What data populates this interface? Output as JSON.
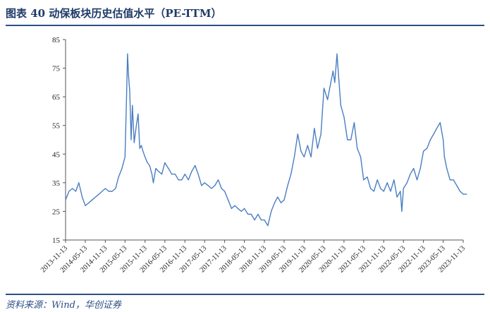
{
  "figure": {
    "title": "图表 40   动保板块历史估值水平（PE-TTM）",
    "source": "资料来源：Wind，华创证券"
  },
  "colors": {
    "line": "#4a7ec1",
    "axis": "#555555",
    "title": "#1f3b68"
  },
  "chart_data": {
    "type": "line",
    "title": "",
    "xlabel": "",
    "ylabel": "",
    "ylim": [
      15,
      85
    ],
    "yticks": [
      15,
      25,
      35,
      45,
      55,
      65,
      75,
      85
    ],
    "grid": false,
    "legend": "none",
    "xticks": [
      "2013-11-13",
      "2014-05-13",
      "2014-11-13",
      "2015-05-13",
      "2015-11-13",
      "2016-05-13",
      "2016-11-13",
      "2017-05-13",
      "2017-11-13",
      "2018-05-13",
      "2018-11-13",
      "2019-05-13",
      "2019-11-13",
      "2020-05-13",
      "2020-11-13",
      "2021-05-13",
      "2021-11-13",
      "2022-05-13",
      "2022-11-13",
      "2023-05-13",
      "2023-11-13"
    ],
    "series": [
      {
        "x": [
          "2013-11-13",
          "2013-12-15",
          "2014-01-15",
          "2014-02-15",
          "2014-03-15",
          "2014-04-15",
          "2014-05-13",
          "2014-06-15",
          "2014-07-15",
          "2014-08-15",
          "2014-09-15",
          "2014-10-15",
          "2014-11-13",
          "2014-12-15",
          "2015-01-15",
          "2015-02-15",
          "2015-03-15",
          "2015-04-15",
          "2015-05-13",
          "2015-05-25",
          "2015-06-05",
          "2015-06-15",
          "2015-06-25",
          "2015-07-08",
          "2015-07-20",
          "2015-08-05",
          "2015-08-25",
          "2015-09-10",
          "2015-09-25",
          "2015-10-10",
          "2015-10-25",
          "2015-11-13",
          "2015-12-05",
          "2015-12-25",
          "2016-01-15",
          "2016-01-28",
          "2016-02-20",
          "2016-03-15",
          "2016-04-15",
          "2016-05-13",
          "2016-06-15",
          "2016-07-15",
          "2016-08-15",
          "2016-09-15",
          "2016-10-15",
          "2016-11-13",
          "2016-12-15",
          "2017-01-15",
          "2017-02-15",
          "2017-03-15",
          "2017-04-15",
          "2017-05-13",
          "2017-06-15",
          "2017-07-15",
          "2017-08-15",
          "2017-09-15",
          "2017-10-15",
          "2017-11-13",
          "2017-12-15",
          "2018-01-15",
          "2018-02-15",
          "2018-03-15",
          "2018-04-15",
          "2018-05-13",
          "2018-06-15",
          "2018-07-15",
          "2018-08-15",
          "2018-09-15",
          "2018-10-15",
          "2018-11-13",
          "2018-12-15",
          "2019-01-15",
          "2019-02-15",
          "2019-03-15",
          "2019-04-15",
          "2019-05-13",
          "2019-06-15",
          "2019-07-15",
          "2019-08-15",
          "2019-09-15",
          "2019-10-15",
          "2019-11-13",
          "2019-12-15",
          "2020-01-15",
          "2020-02-15",
          "2020-03-15",
          "2020-04-15",
          "2020-05-13",
          "2020-06-15",
          "2020-07-15",
          "2020-08-05",
          "2020-08-20",
          "2020-09-10",
          "2020-09-25",
          "2020-10-15",
          "2020-11-13",
          "2020-12-15",
          "2021-01-15",
          "2021-02-15",
          "2021-03-15",
          "2021-04-15",
          "2021-05-13",
          "2021-06-15",
          "2021-07-15",
          "2021-08-15",
          "2021-09-15",
          "2021-10-15",
          "2021-11-13",
          "2021-12-15",
          "2022-01-15",
          "2022-02-15",
          "2022-03-15",
          "2022-04-15",
          "2022-04-28",
          "2022-05-13",
          "2022-06-15",
          "2022-07-15",
          "2022-08-15",
          "2022-09-15",
          "2022-10-15",
          "2022-11-13",
          "2022-12-15",
          "2023-01-15",
          "2023-02-15",
          "2023-03-15",
          "2023-04-15",
          "2023-05-13",
          "2023-05-25",
          "2023-06-15",
          "2023-07-15",
          "2023-08-15",
          "2023-09-15",
          "2023-10-15",
          "2023-11-13",
          "2023-12-15"
        ],
        "values": [
          29,
          32,
          33,
          32,
          35,
          30,
          27,
          28,
          29,
          30,
          31,
          32,
          33,
          32,
          32,
          33,
          37,
          40,
          44,
          62,
          80,
          72,
          67,
          50,
          62,
          49,
          55,
          59,
          47,
          48,
          46,
          44,
          42,
          41,
          38,
          35,
          40,
          39,
          38,
          42,
          40,
          38,
          38,
          36,
          36,
          38,
          36,
          39,
          41,
          38,
          34,
          35,
          34,
          33,
          34,
          36,
          33,
          32,
          29,
          26,
          27,
          26,
          25,
          26,
          24,
          24,
          22,
          24,
          22,
          22,
          20,
          25,
          28,
          30,
          28,
          29,
          34,
          38,
          44,
          52,
          46,
          44,
          48,
          44,
          54,
          47,
          52,
          68,
          64,
          70,
          74,
          70,
          80,
          72,
          62,
          58,
          50,
          50,
          56,
          47,
          44,
          36,
          37,
          33,
          32,
          36,
          33,
          32,
          35,
          32,
          36,
          30,
          32,
          25,
          33,
          35,
          38,
          40,
          36,
          40,
          46,
          47,
          50,
          52,
          54,
          56,
          50,
          44,
          40,
          36,
          36,
          34,
          32,
          31,
          31
        ]
      }
    ]
  }
}
